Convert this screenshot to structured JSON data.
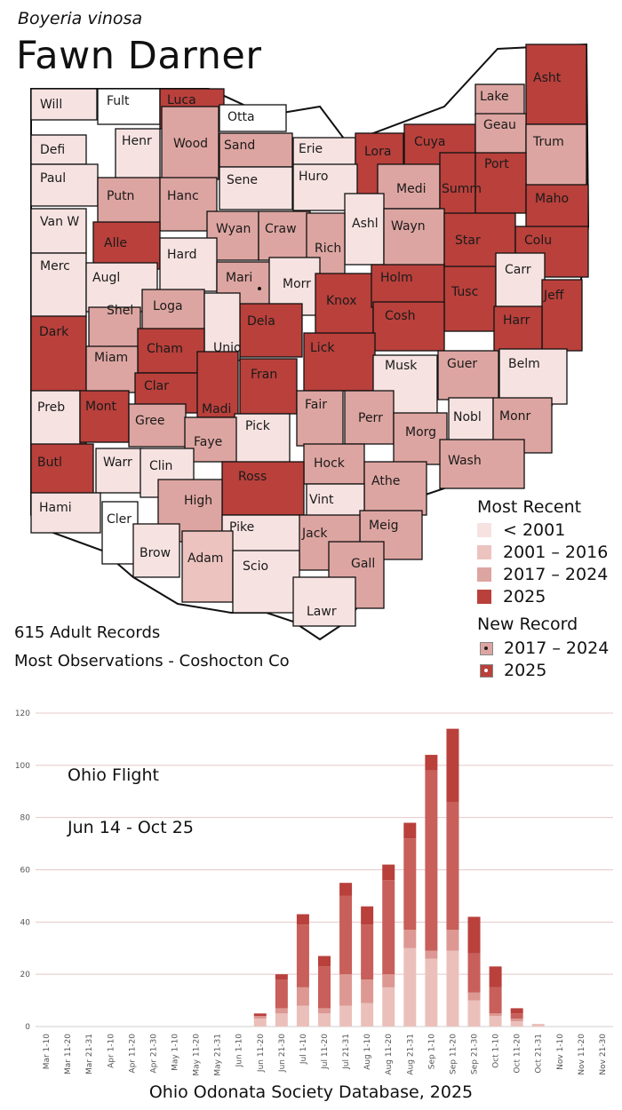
{
  "header": {
    "scientific_name": "Boyeria vinosa",
    "common_name": "Fawn Darner"
  },
  "colors": {
    "lt2001": "#f6e3e1",
    "r2001_2016": "#ecc3bf",
    "r2017_2024": "#dda5a1",
    "r2025": "#b9403b",
    "none": "#ffffff"
  },
  "counties": [
    {
      "name": "Will",
      "status": "lt2001"
    },
    {
      "name": "Fult",
      "status": "none"
    },
    {
      "name": "Luca",
      "status": "r2025"
    },
    {
      "name": "Otta",
      "status": "none"
    },
    {
      "name": "Lake",
      "status": "r2017_2024"
    },
    {
      "name": "Asht",
      "status": "r2025"
    },
    {
      "name": "Defi",
      "status": "lt2001"
    },
    {
      "name": "Henr",
      "status": "lt2001"
    },
    {
      "name": "Wood",
      "status": "r2017_2024"
    },
    {
      "name": "Sand",
      "status": "r2017_2024"
    },
    {
      "name": "Erie",
      "status": "lt2001"
    },
    {
      "name": "Lora",
      "status": "r2025"
    },
    {
      "name": "Cuya",
      "status": "r2025"
    },
    {
      "name": "Geau",
      "status": "r2017_2024"
    },
    {
      "name": "Trum",
      "status": "r2017_2024"
    },
    {
      "name": "Paul",
      "status": "lt2001"
    },
    {
      "name": "Putn",
      "status": "r2017_2024"
    },
    {
      "name": "Hanc",
      "status": "r2017_2024"
    },
    {
      "name": "Sene",
      "status": "lt2001"
    },
    {
      "name": "Huro",
      "status": "lt2001"
    },
    {
      "name": "Medi",
      "status": "r2017_2024"
    },
    {
      "name": "Summ",
      "status": "r2025"
    },
    {
      "name": "Port",
      "status": "r2025"
    },
    {
      "name": "Maho",
      "status": "r2025"
    },
    {
      "name": "Van W",
      "status": "lt2001"
    },
    {
      "name": "Alle",
      "status": "r2025"
    },
    {
      "name": "Wyan",
      "status": "r2017_2024"
    },
    {
      "name": "Craw",
      "status": "r2017_2024"
    },
    {
      "name": "Ashl",
      "status": "lt2001"
    },
    {
      "name": "Wayn",
      "status": "r2017_2024"
    },
    {
      "name": "Star",
      "status": "r2025"
    },
    {
      "name": "Colu",
      "status": "r2025"
    },
    {
      "name": "Hard",
      "status": "lt2001"
    },
    {
      "name": "Rich",
      "status": "r2017_2024"
    },
    {
      "name": "Merc",
      "status": "lt2001"
    },
    {
      "name": "Augl",
      "status": "lt2001"
    },
    {
      "name": "Mari",
      "status": "r2017_2024"
    },
    {
      "name": "Morr",
      "status": "lt2001"
    },
    {
      "name": "Knox",
      "status": "r2025"
    },
    {
      "name": "Holm",
      "status": "r2025"
    },
    {
      "name": "Tusc",
      "status": "r2025"
    },
    {
      "name": "Carr",
      "status": "lt2001"
    },
    {
      "name": "Jeff",
      "status": "r2025"
    },
    {
      "name": "Shel",
      "status": "r2017_2024"
    },
    {
      "name": "Loga",
      "status": "r2017_2024"
    },
    {
      "name": "Dela",
      "status": "r2025"
    },
    {
      "name": "Cosh",
      "status": "r2025"
    },
    {
      "name": "Harr",
      "status": "r2025"
    },
    {
      "name": "Dark",
      "status": "r2025"
    },
    {
      "name": "Unio",
      "status": "lt2001"
    },
    {
      "name": "Cham",
      "status": "r2025"
    },
    {
      "name": "Lick",
      "status": "r2025"
    },
    {
      "name": "Miam",
      "status": "r2017_2024"
    },
    {
      "name": "Musk",
      "status": "lt2001"
    },
    {
      "name": "Guer",
      "status": "r2017_2024"
    },
    {
      "name": "Belm",
      "status": "lt2001"
    },
    {
      "name": "Fran",
      "status": "r2025"
    },
    {
      "name": "Clar",
      "status": "r2025"
    },
    {
      "name": "Madi",
      "status": "r2025"
    },
    {
      "name": "Fair",
      "status": "r2017_2024"
    },
    {
      "name": "Perr",
      "status": "r2017_2024"
    },
    {
      "name": "Nobl",
      "status": "lt2001"
    },
    {
      "name": "Monr",
      "status": "r2017_2024"
    },
    {
      "name": "Preb",
      "status": "lt2001"
    },
    {
      "name": "Mont",
      "status": "r2025"
    },
    {
      "name": "Gree",
      "status": "r2017_2024"
    },
    {
      "name": "Pick",
      "status": "lt2001"
    },
    {
      "name": "Morg",
      "status": "r2017_2024"
    },
    {
      "name": "Faye",
      "status": "r2017_2024"
    },
    {
      "name": "Wash",
      "status": "r2017_2024"
    },
    {
      "name": "Butl",
      "status": "r2025"
    },
    {
      "name": "Warr",
      "status": "lt2001"
    },
    {
      "name": "Clin",
      "status": "lt2001"
    },
    {
      "name": "Hock",
      "status": "r2017_2024"
    },
    {
      "name": "Ross",
      "status": "r2025"
    },
    {
      "name": "Athe",
      "status": "r2017_2024"
    },
    {
      "name": "Vint",
      "status": "lt2001"
    },
    {
      "name": "High",
      "status": "r2017_2024"
    },
    {
      "name": "Hami",
      "status": "lt2001"
    },
    {
      "name": "Cler",
      "status": "none"
    },
    {
      "name": "Pike",
      "status": "lt2001"
    },
    {
      "name": "Meig",
      "status": "r2017_2024"
    },
    {
      "name": "Jack",
      "status": "r2017_2024"
    },
    {
      "name": "Brow",
      "status": "lt2001"
    },
    {
      "name": "Adam",
      "status": "r2001_2016"
    },
    {
      "name": "Scio",
      "status": "lt2001"
    },
    {
      "name": "Gall",
      "status": "r2017_2024"
    },
    {
      "name": "Lawr",
      "status": "lt2001"
    }
  ],
  "legend": {
    "title": "Most Recent",
    "items": [
      {
        "label": "< 2001",
        "color": "#f6e3e1"
      },
      {
        "label": "2001 – 2016",
        "color": "#ecc3bf"
      },
      {
        "label": "2017 – 2024",
        "color": "#dda5a1"
      },
      {
        "label": "2025",
        "color": "#b9403b"
      }
    ],
    "new_title": "New Record",
    "new_items": [
      {
        "label": "2017 – 2024",
        "color": "#dda5a1",
        "dot": "dark"
      },
      {
        "label": "2025",
        "color": "#b9403b",
        "dot": "light"
      }
    ]
  },
  "stats": {
    "records": "615 Adult Records",
    "most": "Most Observations - Coshocton Co"
  },
  "chart_data": {
    "type": "bar",
    "stacked": true,
    "annotations": [
      "Ohio Flight",
      "Jun 14 - Oct 25"
    ],
    "ylim": [
      0,
      120
    ],
    "yticks": [
      0,
      20,
      40,
      60,
      80,
      100,
      120
    ],
    "grid": true,
    "categories": [
      "Mar 1-10",
      "Mar 11-20",
      "Mar 21-31",
      "Apr 1-10",
      "Apr 11-20",
      "Apr 21-30",
      "May 1-10",
      "May 11-20",
      "May 21-31",
      "Jun 1-10",
      "Jun 11-20",
      "Jun 21-30",
      "Jul 1-10",
      "Jul 11-20",
      "Jul 21-31",
      "Aug 1-10",
      "Aug 11-20",
      "Aug 21-31",
      "Sep 1-10",
      "Sep 11-20",
      "Sep 21-30",
      "Oct 1-10",
      "Oct 11-20",
      "Oct 21-31",
      "Nov 1-10",
      "Nov 11-20",
      "Nov 21-30"
    ],
    "series": [
      {
        "color": "#ebc0bb",
        "values": [
          0,
          0,
          0,
          0,
          0,
          0,
          0,
          0,
          0,
          0,
          3,
          5,
          8,
          5,
          8,
          9,
          15,
          30,
          26,
          29,
          10,
          4,
          2,
          1,
          0,
          0,
          0
        ]
      },
      {
        "color": "#dd9893",
        "values": [
          0,
          0,
          0,
          0,
          0,
          0,
          0,
          0,
          0,
          0,
          1,
          2,
          7,
          2,
          12,
          9,
          5,
          7,
          3,
          8,
          3,
          1,
          1,
          0,
          0,
          0,
          0
        ]
      },
      {
        "color": "#c85f5a",
        "values": [
          0,
          0,
          0,
          0,
          0,
          0,
          0,
          0,
          0,
          0,
          0,
          11,
          24,
          16,
          30,
          21,
          36,
          35,
          69,
          49,
          15,
          10,
          2,
          0,
          0,
          0,
          0
        ]
      },
      {
        "color": "#b9403b",
        "values": [
          0,
          0,
          0,
          0,
          0,
          0,
          0,
          0,
          0,
          0,
          1,
          2,
          4,
          4,
          5,
          7,
          6,
          6,
          6,
          28,
          14,
          8,
          2,
          0,
          0,
          0,
          0
        ]
      }
    ]
  },
  "footer": "Ohio Odonata Society Database, 2025"
}
